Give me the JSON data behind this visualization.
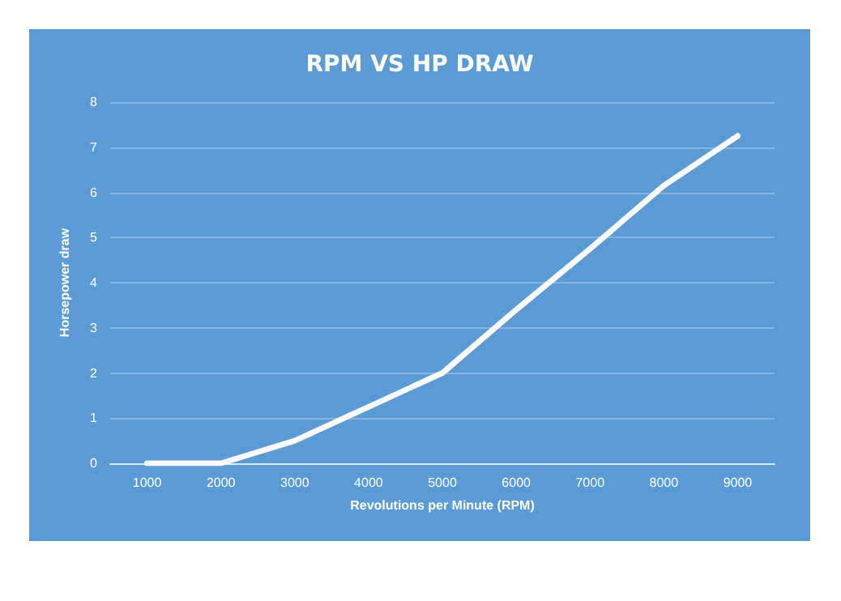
{
  "chart_data": {
    "type": "line",
    "title": "RPM VS HP DRAW",
    "xlabel": "Revolutions per Minute (RPM)",
    "ylabel": "Horsepower draw",
    "categories": [
      "1000",
      "2000",
      "3000",
      "4000",
      "5000",
      "6000",
      "7000",
      "8000",
      "9000"
    ],
    "series": [
      {
        "color": "#ffffff",
        "values": [
          0,
          0,
          0.5,
          1.25,
          2,
          3.4,
          4.75,
          6.15,
          7.25
        ]
      }
    ],
    "ylim": [
      0,
      8
    ],
    "yticks": [
      0,
      1,
      2,
      3,
      4,
      5,
      6,
      7,
      8
    ],
    "grid": "y",
    "marker": "none",
    "line_style": "solid"
  }
}
